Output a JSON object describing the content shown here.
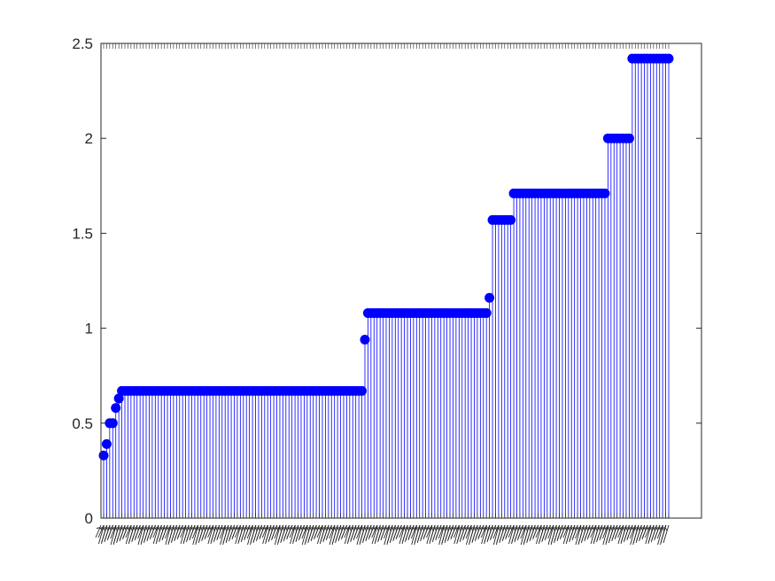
{
  "chart_data": {
    "type": "stem",
    "title": "",
    "xlabel": "",
    "ylabel": "",
    "ylim": [
      0,
      2.5
    ],
    "yticks": [
      0,
      0.5,
      1,
      1.5,
      2,
      2.5
    ],
    "ytick_labels": [
      "0",
      "0.5",
      "1",
      "1.5",
      "2",
      "2.5"
    ],
    "grid": false,
    "series": [
      {
        "color": "#0000ff",
        "marker": "filled-circle",
        "values": [
          0.33,
          0.39,
          0.5,
          0.5,
          0.58,
          0.63,
          0.67,
          0.67,
          0.67,
          0.67,
          0.67,
          0.67,
          0.67,
          0.67,
          0.67,
          0.67,
          0.67,
          0.67,
          0.67,
          0.67,
          0.67,
          0.67,
          0.67,
          0.67,
          0.67,
          0.67,
          0.67,
          0.67,
          0.67,
          0.67,
          0.67,
          0.67,
          0.67,
          0.67,
          0.67,
          0.67,
          0.67,
          0.67,
          0.67,
          0.67,
          0.67,
          0.67,
          0.67,
          0.67,
          0.67,
          0.67,
          0.67,
          0.67,
          0.67,
          0.67,
          0.67,
          0.67,
          0.67,
          0.67,
          0.67,
          0.67,
          0.67,
          0.67,
          0.67,
          0.67,
          0.67,
          0.67,
          0.67,
          0.67,
          0.67,
          0.67,
          0.67,
          0.67,
          0.67,
          0.67,
          0.67,
          0.67,
          0.67,
          0.67,
          0.67,
          0.67,
          0.67,
          0.67,
          0.67,
          0.67,
          0.67,
          0.67,
          0.67,
          0.67,
          0.67,
          0.67,
          0.94,
          1.08,
          1.08,
          1.08,
          1.08,
          1.08,
          1.08,
          1.08,
          1.08,
          1.08,
          1.08,
          1.08,
          1.08,
          1.08,
          1.08,
          1.08,
          1.08,
          1.08,
          1.08,
          1.08,
          1.08,
          1.08,
          1.08,
          1.08,
          1.08,
          1.08,
          1.08,
          1.08,
          1.08,
          1.08,
          1.08,
          1.08,
          1.08,
          1.08,
          1.08,
          1.08,
          1.08,
          1.08,
          1.08,
          1.08,
          1.08,
          1.16,
          1.57,
          1.57,
          1.57,
          1.57,
          1.57,
          1.57,
          1.57,
          1.71,
          1.71,
          1.71,
          1.71,
          1.71,
          1.71,
          1.71,
          1.71,
          1.71,
          1.71,
          1.71,
          1.71,
          1.71,
          1.71,
          1.71,
          1.71,
          1.71,
          1.71,
          1.71,
          1.71,
          1.71,
          1.71,
          1.71,
          1.71,
          1.71,
          1.71,
          1.71,
          1.71,
          1.71,
          1.71,
          1.71,
          2.0,
          2.0,
          2.0,
          2.0,
          2.0,
          2.0,
          2.0,
          2.0,
          2.42,
          2.42,
          2.42,
          2.42,
          2.42,
          2.42,
          2.42,
          2.42,
          2.42,
          2.42,
          2.42,
          2.42,
          2.42
        ]
      }
    ],
    "xtick_labels_note": "dense overlapping numeric index labels, illegible"
  }
}
